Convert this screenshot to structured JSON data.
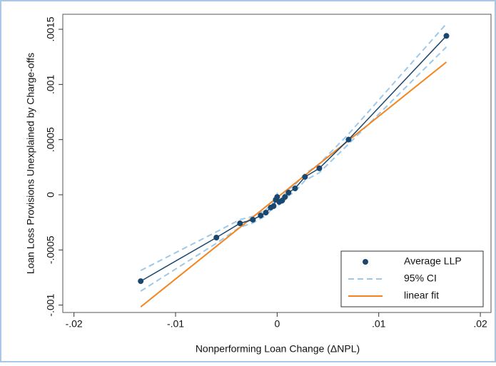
{
  "chart_data": {
    "type": "line",
    "xlabel": "Nonperforming Loan Change (ΔNPL)",
    "ylabel": "Loan Loss Provisions Unexplained by Charge-offs",
    "xlim": [
      -0.0211,
      0.02105
    ],
    "ylim": [
      -0.001067,
      0.001636
    ],
    "xticks": [
      {
        "value": -0.02,
        "label": "-.02"
      },
      {
        "value": -0.01,
        "label": "-.01"
      },
      0,
      {
        "value": 0.01,
        "label": ".01"
      },
      {
        "value": 0.02,
        "label": ".02"
      }
    ],
    "yticks": [
      {
        "value": -0.001,
        "label": "-.001"
      },
      {
        "value": -0.0005,
        "label": "-.0005"
      },
      0,
      {
        "value": 0.0005,
        "label": ".0005"
      },
      {
        "value": 0.001,
        "label": ".001"
      },
      {
        "value": 0.0015,
        "label": ".0015"
      }
    ],
    "legend": "bottom-right",
    "x": [
      -0.01343,
      -0.00598,
      -0.00366,
      -0.00239,
      -0.00162,
      -0.00112,
      -0.00063,
      -0.00035,
      -0.00014,
      0,
      0.00021,
      0.00049,
      0.00077,
      0.00112,
      0.00176,
      0.00274,
      0.00415,
      0.00703,
      0.01666
    ],
    "series": [
      {
        "name": "Average LLP",
        "color": "#1a476f",
        "values": [
          -0.000783,
          -0.000388,
          -0.000259,
          -0.000226,
          -0.000188,
          -0.000162,
          -0.000116,
          -0.000103,
          -4.5e-05,
          -2e-05,
          -6.5e-05,
          -5.2e-05,
          -2e-05,
          2e-05,
          5.8e-05,
          0.000162,
          0.00024,
          0.0005,
          0.00144
        ]
      },
      {
        "name": "95% CI",
        "color": "#9cc8ea",
        "upper": [
          -0.000686,
          -0.000336,
          -0.000225,
          -0.000196,
          -0.00016,
          -0.000135,
          -9e-05,
          -7e-05,
          -2e-05,
          1e-05,
          -3e-05,
          -2e-05,
          1e-05,
          5e-05,
          9e-05,
          0.00019,
          0.00028,
          0.00055,
          0.00155
        ],
        "lower": [
          -0.000873,
          -0.00044,
          -0.000293,
          -0.000256,
          -0.000216,
          -0.00019,
          -0.00014,
          -0.000135,
          -7e-05,
          -5e-05,
          -0.0001,
          -8e-05,
          -5e-05,
          -1e-05,
          3e-05,
          0.00013,
          0.0002,
          0.00046,
          0.00134
        ]
      },
      {
        "name": "linear fit",
        "color": "#f5841f",
        "x": [
          -0.01343,
          0.01666
        ],
        "values": [
          -0.001016,
          0.001203
        ]
      }
    ]
  }
}
